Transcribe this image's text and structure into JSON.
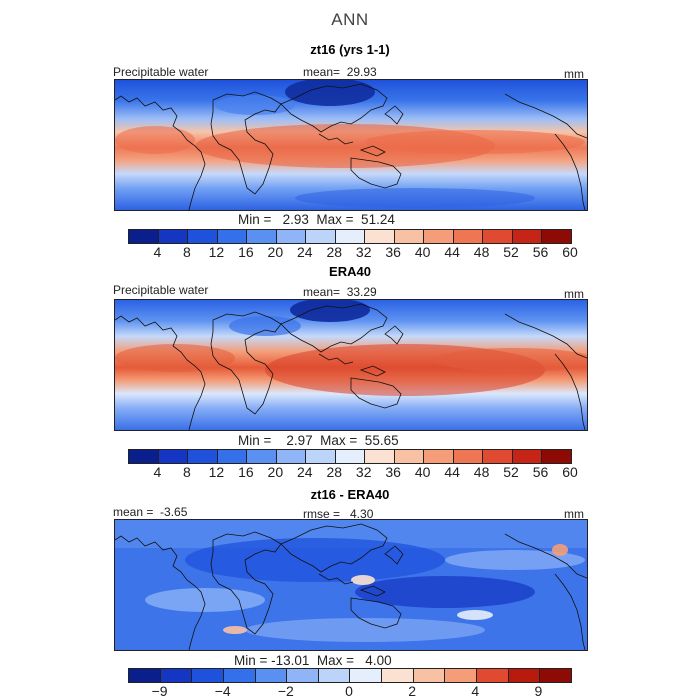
{
  "figure": {
    "season": "ANN",
    "panels": [
      {
        "title": "zt16 (yrs 1-1)",
        "left_label": "Precipitable water",
        "center_label": "mean=  29.93",
        "right_label": "mm",
        "min_max": "Min =   2.93  Max =  51.24",
        "colorbar": {
          "colors": [
            "#0a1f8c",
            "#1436c2",
            "#1f52dc",
            "#3470ea",
            "#5a90f2",
            "#8fb4f7",
            "#bcd3fa",
            "#e4eefc",
            "#fbe1d2",
            "#f8c1a4",
            "#f49d78",
            "#ee7652",
            "#e04a30",
            "#c52416",
            "#8e0a05"
          ],
          "ticks": [
            "4",
            "8",
            "12",
            "16",
            "20",
            "24",
            "28",
            "32",
            "36",
            "40",
            "44",
            "48",
            "52",
            "56",
            "60"
          ]
        }
      },
      {
        "title": "ERA40",
        "left_label": "Precipitable water",
        "center_label": "mean=  33.29",
        "right_label": "mm",
        "min_max": "Min =    2.97  Max =  55.65",
        "colorbar": {
          "colors": [
            "#0a1f8c",
            "#1436c2",
            "#1f52dc",
            "#3470ea",
            "#5a90f2",
            "#8fb4f7",
            "#bcd3fa",
            "#e4eefc",
            "#fbe1d2",
            "#f8c1a4",
            "#f49d78",
            "#ee7652",
            "#e04a30",
            "#c52416",
            "#8e0a05"
          ],
          "ticks": [
            "4",
            "8",
            "12",
            "16",
            "20",
            "24",
            "28",
            "32",
            "36",
            "40",
            "44",
            "48",
            "52",
            "56",
            "60"
          ]
        }
      },
      {
        "title": "zt16 - ERA40",
        "left_label": "mean =  -3.65",
        "center_label": "rmse =   4.30",
        "right_label": "mm",
        "min_max": "Min = -13.01  Max =   4.00",
        "colorbar": {
          "colors": [
            "#0a1f8c",
            "#1436c2",
            "#1f52dc",
            "#3470ea",
            "#5a90f2",
            "#8fb4f7",
            "#bcd3fa",
            "#e4eefc",
            "#fbe1d2",
            "#f8c1a4",
            "#f49d78",
            "#e04a30",
            "#b81a0e",
            "#8e0a05"
          ],
          "ticks": [
            "−9",
            "−4",
            "−2",
            "0",
            "2",
            "4",
            "9"
          ]
        }
      }
    ]
  }
}
